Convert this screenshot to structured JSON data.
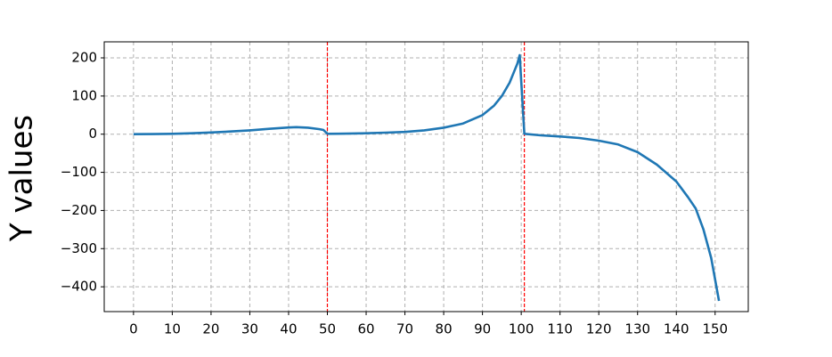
{
  "chart_data": {
    "type": "line",
    "y_label": "Y values",
    "x": [
      0,
      5,
      10,
      15,
      20,
      25,
      30,
      35,
      40,
      42,
      45,
      48,
      49,
      50,
      55,
      60,
      65,
      70,
      75,
      80,
      85,
      90,
      93,
      95,
      97,
      99,
      99.6,
      100.8,
      105,
      110,
      115,
      120,
      125,
      130,
      135,
      140,
      143,
      145,
      147,
      149,
      151
    ],
    "series": [
      {
        "color": "#1f77b4",
        "values": [
          0,
          0.3,
          1,
          2.5,
          4.5,
          7,
          10,
          14,
          17.5,
          18.5,
          17,
          13,
          11,
          1,
          1.5,
          2.5,
          4,
          6,
          10,
          17,
          28,
          50,
          75,
          100,
          135,
          185,
          207,
          1,
          -3,
          -6,
          -10,
          -17,
          -27,
          -47,
          -80,
          -124,
          -165,
          -195,
          -250,
          -325,
          -437
        ]
      }
    ],
    "vlines": [
      50,
      100.8
    ],
    "vline_color": "#ff0000",
    "xlim": [
      -7.55,
      158.55
    ],
    "ylim": [
      -465,
      242
    ],
    "xticks": [
      0,
      10,
      20,
      30,
      40,
      50,
      60,
      70,
      80,
      90,
      100,
      110,
      120,
      130,
      140,
      150
    ],
    "yticks": [
      {
        "value": -400,
        "label": "−400"
      },
      {
        "value": -300,
        "label": "−300"
      },
      {
        "value": -200,
        "label": "−200"
      },
      {
        "value": -100,
        "label": "−100"
      },
      0,
      100,
      200
    ],
    "grid": true
  }
}
